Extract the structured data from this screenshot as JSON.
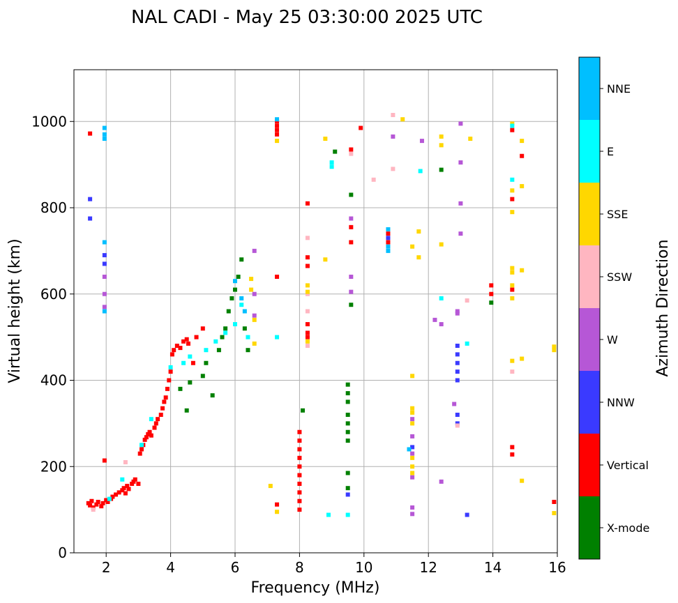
{
  "chart_data": {
    "type": "scatter",
    "title": "NAL CADI - May 25 03:30:00 2025 UTC",
    "xlabel": "Frequency (MHz)",
    "ylabel": "Virtual height (km)",
    "xlim": [
      1,
      16
    ],
    "ylim": [
      0,
      1120
    ],
    "xticks": [
      2,
      4,
      6,
      8,
      10,
      12,
      14,
      16
    ],
    "yticks": [
      0,
      200,
      400,
      600,
      800,
      1000
    ],
    "grid": true,
    "colorbar": {
      "label": "Azimuth Direction",
      "categories": [
        {
          "name": "X-mode",
          "color": "#008000"
        },
        {
          "name": "Vertical",
          "color": "#ff0000"
        },
        {
          "name": "NNW",
          "color": "#3a3aff"
        },
        {
          "name": "W",
          "color": "#b657d6"
        },
        {
          "name": "SSW",
          "color": "#ffb6c1"
        },
        {
          "name": "SSE",
          "color": "#ffd700"
        },
        {
          "name": "E",
          "color": "#00ffff"
        },
        {
          "name": "NNE",
          "color": "#00bfff"
        }
      ]
    },
    "series": [
      {
        "name": "Vertical",
        "points": [
          [
            1.45,
            115
          ],
          [
            1.5,
            110
          ],
          [
            1.55,
            120
          ],
          [
            1.6,
            105
          ],
          [
            1.7,
            112
          ],
          [
            1.75,
            118
          ],
          [
            1.85,
            108
          ],
          [
            1.9,
            115
          ],
          [
            2.0,
            122
          ],
          [
            2.05,
            118
          ],
          [
            2.15,
            125
          ],
          [
            2.2,
            130
          ],
          [
            2.3,
            135
          ],
          [
            2.4,
            140
          ],
          [
            2.5,
            145
          ],
          [
            2.55,
            150
          ],
          [
            2.6,
            138
          ],
          [
            2.65,
            155
          ],
          [
            2.7,
            148
          ],
          [
            2.8,
            160
          ],
          [
            2.85,
            165
          ],
          [
            2.9,
            170
          ],
          [
            3.0,
            160
          ],
          [
            3.05,
            230
          ],
          [
            3.1,
            240
          ],
          [
            3.15,
            250
          ],
          [
            3.2,
            262
          ],
          [
            3.25,
            268
          ],
          [
            3.3,
            275
          ],
          [
            3.35,
            280
          ],
          [
            3.4,
            272
          ],
          [
            3.5,
            290
          ],
          [
            3.55,
            300
          ],
          [
            3.6,
            310
          ],
          [
            3.7,
            320
          ],
          [
            3.75,
            335
          ],
          [
            3.8,
            350
          ],
          [
            3.85,
            360
          ],
          [
            3.9,
            380
          ],
          [
            3.95,
            400
          ],
          [
            4.0,
            420
          ],
          [
            4.05,
            460
          ],
          [
            4.1,
            470
          ],
          [
            4.2,
            480
          ],
          [
            4.3,
            475
          ],
          [
            4.4,
            490
          ],
          [
            4.5,
            495
          ],
          [
            4.55,
            485
          ],
          [
            4.7,
            440
          ],
          [
            4.8,
            500
          ],
          [
            5.0,
            520
          ],
          [
            1.5,
            972
          ],
          [
            1.95,
            214
          ],
          [
            7.3,
            980
          ],
          [
            7.3,
            990
          ],
          [
            7.3,
            1000
          ],
          [
            7.3,
            970
          ],
          [
            7.3,
            112
          ],
          [
            7.3,
            640
          ],
          [
            8.0,
            100
          ],
          [
            8.0,
            120
          ],
          [
            8.0,
            140
          ],
          [
            8.0,
            160
          ],
          [
            8.0,
            180
          ],
          [
            8.0,
            200
          ],
          [
            8.0,
            220
          ],
          [
            8.0,
            240
          ],
          [
            8.0,
            260
          ],
          [
            8.0,
            280
          ],
          [
            8.25,
            685
          ],
          [
            8.25,
            665
          ],
          [
            8.25,
            530
          ],
          [
            8.25,
            510
          ],
          [
            8.25,
            500
          ],
          [
            8.25,
            810
          ],
          [
            9.6,
            935
          ],
          [
            9.6,
            720
          ],
          [
            9.6,
            755
          ],
          [
            9.9,
            985
          ],
          [
            10.75,
            740
          ],
          [
            10.75,
            720
          ],
          [
            14.6,
            980
          ],
          [
            14.6,
            820
          ],
          [
            14.6,
            610
          ],
          [
            14.6,
            245
          ],
          [
            14.6,
            228
          ],
          [
            14.9,
            920
          ],
          [
            15.9,
            118
          ],
          [
            13.95,
            600
          ],
          [
            13.95,
            620
          ]
        ]
      },
      {
        "name": "X-mode",
        "points": [
          [
            4.3,
            380
          ],
          [
            4.5,
            330
          ],
          [
            4.6,
            395
          ],
          [
            5.0,
            410
          ],
          [
            5.1,
            440
          ],
          [
            5.3,
            365
          ],
          [
            5.5,
            470
          ],
          [
            5.6,
            500
          ],
          [
            5.7,
            520
          ],
          [
            5.8,
            560
          ],
          [
            5.9,
            590
          ],
          [
            6.0,
            610
          ],
          [
            6.1,
            640
          ],
          [
            6.2,
            680
          ],
          [
            6.3,
            520
          ],
          [
            6.4,
            470
          ],
          [
            9.5,
            150
          ],
          [
            9.5,
            185
          ],
          [
            9.5,
            260
          ],
          [
            9.5,
            280
          ],
          [
            9.5,
            300
          ],
          [
            9.5,
            320
          ],
          [
            9.5,
            350
          ],
          [
            9.5,
            370
          ],
          [
            9.5,
            390
          ],
          [
            9.6,
            575
          ],
          [
            9.6,
            830
          ],
          [
            9.1,
            930
          ],
          [
            12.4,
            888
          ],
          [
            13.95,
            580
          ],
          [
            8.1,
            330
          ]
        ]
      },
      {
        "name": "NNW",
        "points": [
          [
            1.5,
            820
          ],
          [
            1.5,
            775
          ],
          [
            1.95,
            690
          ],
          [
            1.95,
            670
          ],
          [
            12.9,
            400
          ],
          [
            12.9,
            420
          ],
          [
            12.9,
            440
          ],
          [
            12.9,
            460
          ],
          [
            12.9,
            480
          ],
          [
            12.9,
            300
          ],
          [
            12.9,
            320
          ],
          [
            13.2,
            88
          ],
          [
            11.5,
            245
          ],
          [
            9.5,
            135
          ],
          [
            10.75,
            730
          ]
        ]
      },
      {
        "name": "W",
        "points": [
          [
            1.95,
            640
          ],
          [
            1.95,
            600
          ],
          [
            1.95,
            570
          ],
          [
            6.6,
            700
          ],
          [
            6.6,
            600
          ],
          [
            6.6,
            550
          ],
          [
            9.6,
            775
          ],
          [
            9.6,
            640
          ],
          [
            9.6,
            605
          ],
          [
            10.9,
            965
          ],
          [
            11.5,
            90
          ],
          [
            11.5,
            105
          ],
          [
            11.5,
            175
          ],
          [
            11.5,
            230
          ],
          [
            11.5,
            270
          ],
          [
            11.5,
            310
          ],
          [
            11.8,
            955
          ],
          [
            12.2,
            540
          ],
          [
            12.4,
            530
          ],
          [
            12.8,
            345
          ],
          [
            13.0,
            995
          ],
          [
            13.0,
            905
          ],
          [
            13.0,
            810
          ],
          [
            13.0,
            740
          ],
          [
            12.9,
            560
          ],
          [
            12.9,
            555
          ],
          [
            12.4,
            165
          ]
        ]
      },
      {
        "name": "SSW",
        "points": [
          [
            1.6,
            100
          ],
          [
            2.6,
            210
          ],
          [
            8.25,
            730
          ],
          [
            8.25,
            600
          ],
          [
            8.25,
            560
          ],
          [
            8.25,
            480
          ],
          [
            9.6,
            925
          ],
          [
            10.3,
            865
          ],
          [
            10.9,
            1015
          ],
          [
            10.9,
            890
          ],
          [
            12.9,
            295
          ],
          [
            13.2,
            585
          ],
          [
            14.6,
            420
          ]
        ]
      },
      {
        "name": "SSE",
        "points": [
          [
            6.5,
            635
          ],
          [
            6.5,
            610
          ],
          [
            6.6,
            540
          ],
          [
            6.6,
            485
          ],
          [
            7.3,
            955
          ],
          [
            7.3,
            95
          ],
          [
            7.1,
            155
          ],
          [
            8.25,
            620
          ],
          [
            8.25,
            605
          ],
          [
            8.25,
            490
          ],
          [
            8.8,
            960
          ],
          [
            8.8,
            680
          ],
          [
            11.2,
            1005
          ],
          [
            11.5,
            710
          ],
          [
            11.5,
            410
          ],
          [
            11.5,
            325
          ],
          [
            11.5,
            335
          ],
          [
            11.5,
            300
          ],
          [
            11.5,
            220
          ],
          [
            11.5,
            200
          ],
          [
            11.5,
            185
          ],
          [
            11.7,
            745
          ],
          [
            11.7,
            685
          ],
          [
            12.4,
            965
          ],
          [
            12.4,
            945
          ],
          [
            12.4,
            715
          ],
          [
            13.3,
            960
          ],
          [
            14.6,
            995
          ],
          [
            14.6,
            840
          ],
          [
            14.6,
            790
          ],
          [
            14.6,
            660
          ],
          [
            14.6,
            650
          ],
          [
            14.6,
            620
          ],
          [
            14.6,
            590
          ],
          [
            14.6,
            445
          ],
          [
            14.9,
            955
          ],
          [
            14.9,
            850
          ],
          [
            14.9,
            655
          ],
          [
            14.9,
            450
          ],
          [
            14.9,
            167
          ],
          [
            15.9,
            470
          ],
          [
            15.9,
            478
          ],
          [
            15.9,
            92
          ]
        ]
      },
      {
        "name": "E",
        "points": [
          [
            2.1,
            125
          ],
          [
            2.5,
            170
          ],
          [
            3.1,
            250
          ],
          [
            3.4,
            310
          ],
          [
            4.0,
            430
          ],
          [
            4.4,
            440
          ],
          [
            4.6,
            455
          ],
          [
            5.1,
            470
          ],
          [
            5.4,
            490
          ],
          [
            5.7,
            510
          ],
          [
            6.0,
            530
          ],
          [
            6.2,
            575
          ],
          [
            6.4,
            500
          ],
          [
            7.3,
            500
          ],
          [
            9.0,
            905
          ],
          [
            9.0,
            895
          ],
          [
            8.9,
            88
          ],
          [
            9.5,
            88
          ],
          [
            11.75,
            885
          ],
          [
            12.4,
            590
          ],
          [
            14.6,
            865
          ],
          [
            14.6,
            990
          ],
          [
            13.2,
            485
          ]
        ]
      },
      {
        "name": "NNE",
        "points": [
          [
            1.95,
            985
          ],
          [
            1.95,
            970
          ],
          [
            1.95,
            960
          ],
          [
            1.95,
            720
          ],
          [
            1.95,
            560
          ],
          [
            6.0,
            630
          ],
          [
            6.2,
            590
          ],
          [
            6.3,
            560
          ],
          [
            7.3,
            1005
          ],
          [
            10.75,
            700
          ],
          [
            10.75,
            710
          ],
          [
            10.75,
            750
          ],
          [
            11.4,
            240
          ]
        ]
      }
    ]
  }
}
